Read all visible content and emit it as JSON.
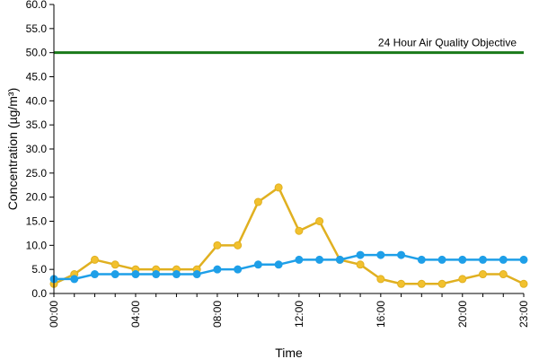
{
  "chart_data": {
    "type": "line",
    "xlabel": "Time",
    "ylabel": "Concentration (µg/m³)",
    "ylim": [
      0,
      60
    ],
    "y_ticks": [
      "0.0",
      "5.0",
      "10.0",
      "15.0",
      "20.0",
      "25.0",
      "30.0",
      "35.0",
      "40.0",
      "45.0",
      "50.0",
      "55.0",
      "60.0"
    ],
    "y_tick_values": [
      0,
      5,
      10,
      15,
      20,
      25,
      30,
      35,
      40,
      45,
      50,
      55,
      60
    ],
    "x": [
      0,
      1,
      2,
      3,
      4,
      5,
      6,
      7,
      8,
      9,
      10,
      11,
      12,
      13,
      14,
      15,
      16,
      17,
      18,
      19,
      20,
      21,
      22,
      23
    ],
    "x_ticks": [
      "00:00",
      "04:00",
      "08:00",
      "12:00",
      "16:00",
      "20:00",
      "23:00"
    ],
    "x_tick_values": [
      0,
      4,
      8,
      12,
      16,
      20,
      23
    ],
    "grid": false,
    "series": [
      {
        "color": "#f2c12e",
        "stroke": "#e0b020",
        "values": [
          2,
          4,
          7,
          6,
          5,
          5,
          5,
          5,
          10,
          10,
          19,
          22,
          13,
          15,
          7,
          6,
          3,
          2,
          2,
          2,
          3,
          4,
          4,
          2
        ]
      },
      {
        "color": "#1e9fe8",
        "stroke": "#1e9fe8",
        "values": [
          3,
          3,
          4,
          4,
          4,
          4,
          4,
          4,
          5,
          5,
          6,
          6,
          7,
          7,
          7,
          8,
          8,
          8,
          7,
          7,
          7,
          7,
          7,
          7
        ]
      }
    ],
    "reference_line": {
      "value": 50,
      "label": "24 Hour Air Quality Objective",
      "color": "#1a7a1a"
    }
  }
}
